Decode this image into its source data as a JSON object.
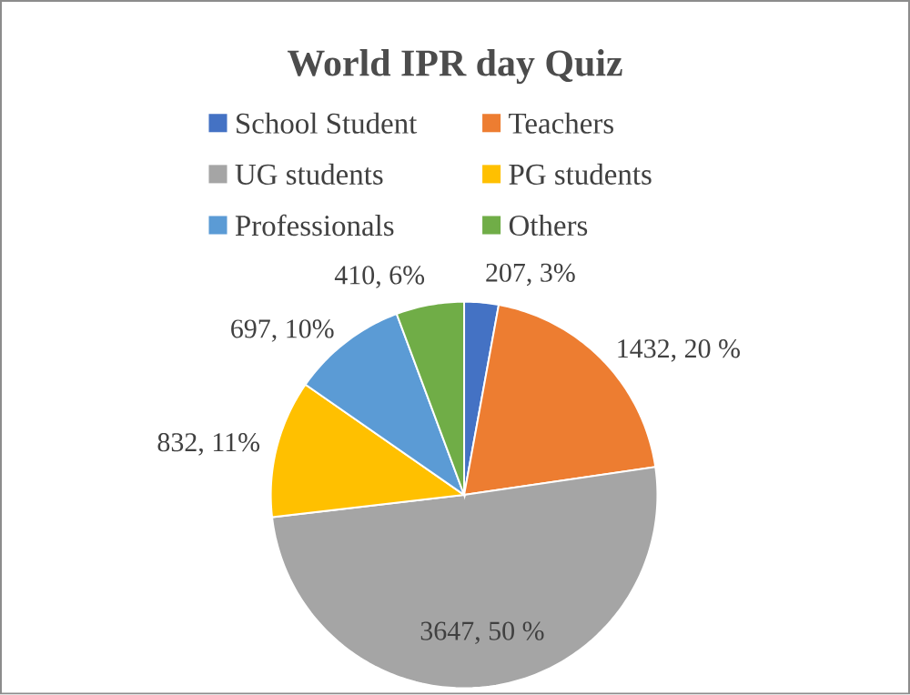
{
  "chart_data": {
    "type": "pie",
    "title": "World  IPR day Quiz",
    "categories": [
      "School Student",
      "Teachers",
      "UG students",
      "PG students",
      "Professionals",
      "Others"
    ],
    "values": [
      207,
      1432,
      3647,
      832,
      697,
      410
    ],
    "colors": [
      "#4472c4",
      "#ed7d31",
      "#a5a5a5",
      "#ffc000",
      "#5b9bd5",
      "#70ad47"
    ],
    "value_labels": [
      "207, 3%",
      "1432, 20 %",
      "3647, 50 %",
      "832, 11%",
      "697, 10%",
      "410, 6%"
    ],
    "legend": "top"
  }
}
